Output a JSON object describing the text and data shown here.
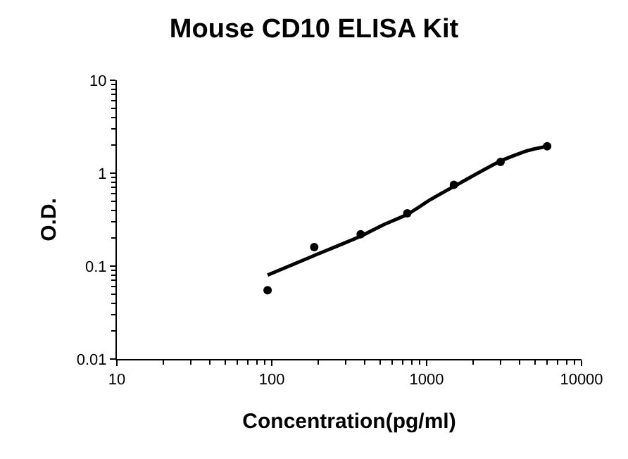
{
  "chart_data": {
    "type": "scatter",
    "title": "Mouse CD10 ELISA Kit",
    "xlabel": "Concentration(pg/ml)",
    "ylabel": "O.D.",
    "log": "xy",
    "xlim": [
      10,
      10000
    ],
    "ylim": [
      0.01,
      10
    ],
    "xticks": [
      10,
      100,
      1000,
      10000
    ],
    "yticks": [
      0.01,
      0.1,
      1,
      10
    ],
    "marker": "circle",
    "series": [
      {
        "color": "#000000",
        "x": [
          94,
          188,
          375,
          750,
          1500,
          3000,
          6000
        ],
        "values": [
          0.055,
          0.16,
          0.22,
          0.37,
          0.75,
          1.32,
          1.95
        ]
      },
      {
        "type": "line",
        "color": "#000000",
        "marker": "none",
        "line_style": "solid",
        "x": [
          94,
          188,
          375,
          530,
          750,
          1060,
          1500,
          3000,
          4500,
          6000
        ],
        "values": [
          0.08,
          0.13,
          0.21,
          0.28,
          0.36,
          0.52,
          0.72,
          1.35,
          1.75,
          1.95
        ]
      }
    ]
  }
}
